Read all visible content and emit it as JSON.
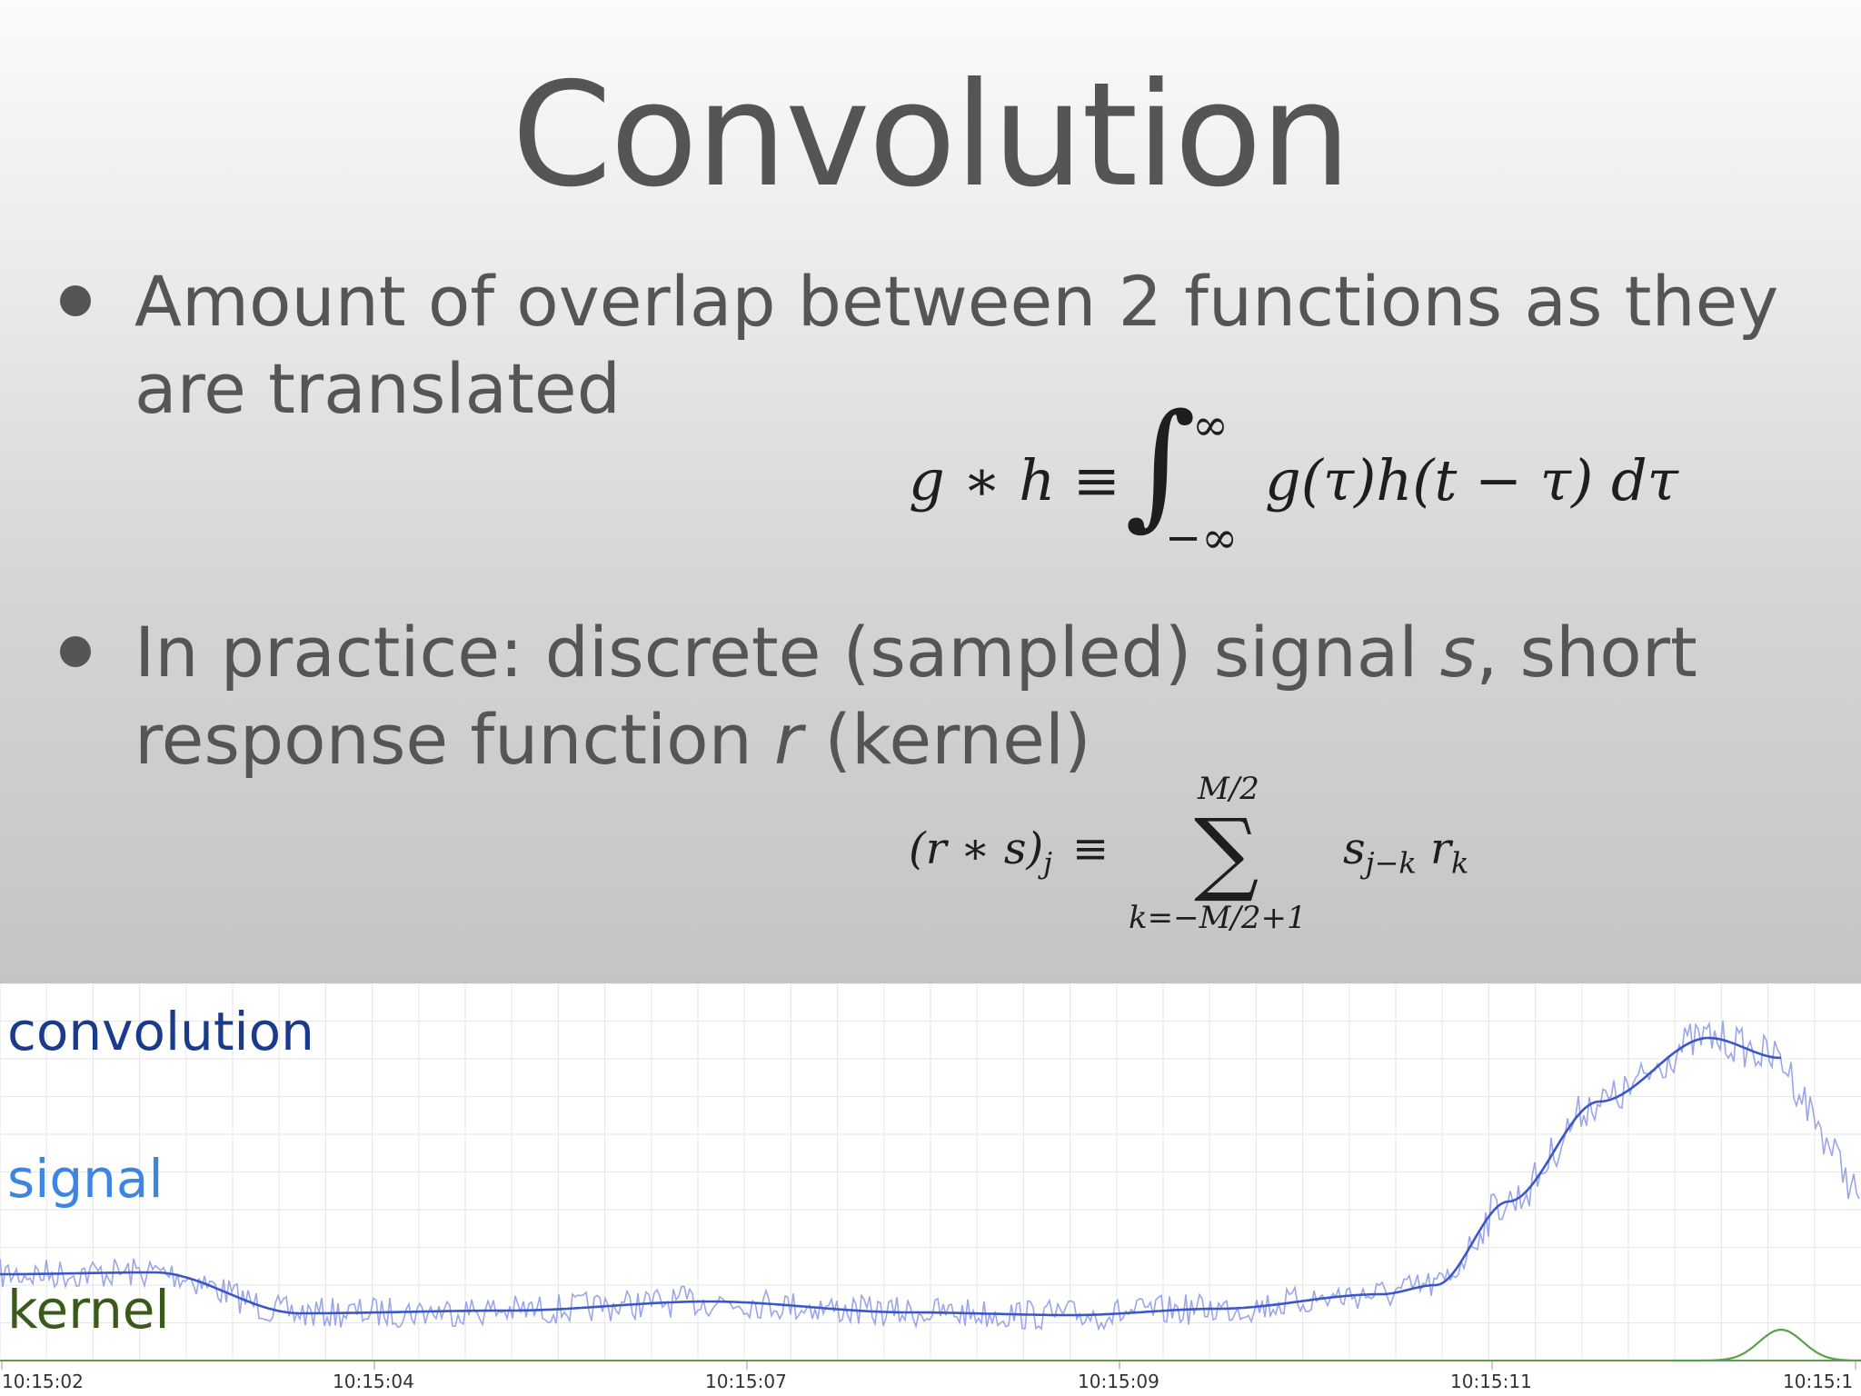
{
  "title": "Convolution",
  "bullets": [
    {
      "text_before": "Amount of overlap between 2 functions as they are translated"
    },
    {
      "text_before": "In practice: discrete (sampled) signal ",
      "var_1": "s",
      "text_middle": ", short response function ",
      "var_2": "r",
      "text_after": " (kernel)"
    }
  ],
  "formula_continuous": {
    "lhs": "g ∗ h ≡",
    "integral": "∫",
    "upper": "∞",
    "lower": "−∞",
    "body": "g(τ)h(t − τ) dτ"
  },
  "formula_discrete": {
    "lhs": "(r ∗ s)",
    "lhs_sub": "j",
    "equiv": "≡",
    "sum": "∑",
    "upper": "M/2",
    "lower": "k=−M/2+1",
    "body_s": "s",
    "body_s_sub": "j−k",
    "body_r": "r",
    "body_r_sub": "k"
  },
  "plot": {
    "legend": {
      "convolution": "convolution",
      "signal": "signal",
      "kernel": "kernel"
    },
    "colors": {
      "convolution": "#1a3a8c",
      "signal": "#3d85e0",
      "kernel": "#3a5a1a",
      "signal_line": "#8a96e6",
      "convolution_line": "#3a56c8",
      "kernel_line": "#5aa04a",
      "grid": "#e6e6e6"
    },
    "x_ticks": [
      "10:15:02",
      "10:15:04",
      "10:15:07",
      "10:15:09",
      "10:15:11",
      "10:15:1"
    ]
  }
}
